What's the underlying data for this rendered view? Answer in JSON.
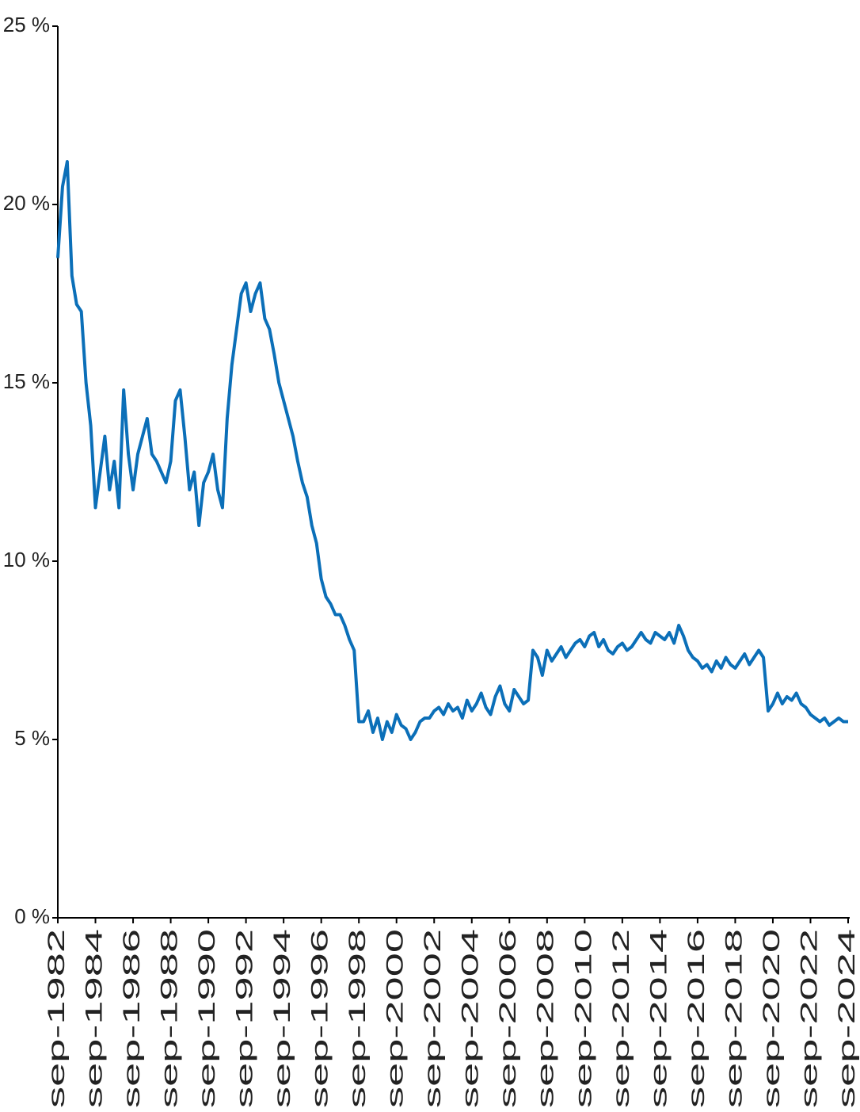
{
  "chart_data": {
    "type": "line",
    "categories": [
      "sep-1982",
      null,
      null,
      null,
      null,
      null,
      null,
      null,
      "sep-1984",
      null,
      null,
      null,
      null,
      null,
      null,
      null,
      "sep-1986",
      null,
      null,
      null,
      null,
      null,
      null,
      null,
      "sep-1988",
      null,
      null,
      null,
      null,
      null,
      null,
      null,
      "sep-1990",
      null,
      null,
      null,
      null,
      null,
      null,
      null,
      "sep-1992",
      null,
      null,
      null,
      null,
      null,
      null,
      null,
      "sep-1994",
      null,
      null,
      null,
      null,
      null,
      null,
      null,
      "sep-1996",
      null,
      null,
      null,
      null,
      null,
      null,
      null,
      "sep-1998",
      null,
      null,
      null,
      null,
      null,
      null,
      null,
      "sep-2000",
      null,
      null,
      null,
      null,
      null,
      null,
      null,
      "sep-2002",
      null,
      null,
      null,
      null,
      null,
      null,
      null,
      "sep-2004",
      null,
      null,
      null,
      null,
      null,
      null,
      null,
      "sep-2006",
      null,
      null,
      null,
      null,
      null,
      null,
      null,
      "sep-2008",
      null,
      null,
      null,
      null,
      null,
      null,
      null,
      "sep-2010",
      null,
      null,
      null,
      null,
      null,
      null,
      null,
      "sep-2012",
      null,
      null,
      null,
      null,
      null,
      null,
      null,
      "sep-2014",
      null,
      null,
      null,
      null,
      null,
      null,
      null,
      "sep-2016",
      null,
      null,
      null,
      null,
      null,
      null,
      null,
      "sep-2018",
      null,
      null,
      null,
      null,
      null,
      null,
      null,
      "sep-2020",
      null,
      null,
      null,
      null,
      null,
      null,
      null,
      "sep-2022",
      null,
      null,
      null,
      null,
      null,
      null,
      null,
      "sep-2024"
    ],
    "values": [
      18.5,
      20.5,
      21.2,
      18.0,
      17.2,
      17.0,
      15.0,
      13.8,
      11.5,
      12.5,
      13.5,
      12.0,
      12.8,
      11.5,
      14.8,
      13.0,
      12.0,
      13.0,
      13.5,
      14.0,
      13.0,
      12.8,
      12.5,
      12.2,
      12.8,
      14.5,
      14.8,
      13.5,
      12.0,
      12.5,
      11.0,
      12.2,
      12.5,
      13.0,
      12.0,
      11.5,
      14.0,
      15.5,
      16.5,
      17.5,
      17.8,
      17.0,
      17.5,
      17.8,
      16.8,
      16.5,
      15.8,
      15.0,
      14.5,
      14.0,
      13.5,
      12.8,
      12.2,
      11.8,
      11.0,
      10.5,
      9.5,
      9.0,
      8.8,
      8.5,
      8.5,
      8.2,
      7.8,
      7.5,
      5.5,
      5.5,
      5.8,
      5.2,
      5.6,
      5.0,
      5.5,
      5.2,
      5.7,
      5.4,
      5.3,
      5.0,
      5.2,
      5.5,
      5.6,
      5.6,
      5.8,
      5.9,
      5.7,
      6.0,
      5.8,
      5.9,
      5.6,
      6.1,
      5.8,
      6.0,
      6.3,
      5.9,
      5.7,
      6.2,
      6.5,
      6.0,
      5.8,
      6.4,
      6.2,
      6.0,
      6.1,
      7.5,
      7.3,
      6.8,
      7.5,
      7.2,
      7.4,
      7.6,
      7.3,
      7.5,
      7.7,
      7.8,
      7.6,
      7.9,
      8.0,
      7.6,
      7.8,
      7.5,
      7.4,
      7.6,
      7.7,
      7.5,
      7.6,
      7.8,
      8.0,
      7.8,
      7.7,
      8.0,
      7.9,
      7.8,
      8.0,
      7.7,
      8.2,
      7.9,
      7.5,
      7.3,
      7.2,
      7.0,
      7.1,
      6.9,
      7.2,
      7.0,
      7.3,
      7.1,
      7.0,
      7.2,
      7.4,
      7.1,
      7.3,
      7.5,
      7.3,
      5.8,
      6.0,
      6.3,
      6.0,
      6.2,
      6.1,
      6.3,
      6.0,
      5.9,
      5.7,
      5.6,
      5.5,
      5.6,
      5.4,
      5.5,
      5.6,
      5.5,
      5.5
    ],
    "color": "#0b6fb8",
    "ylim": [
      0,
      25
    ],
    "yticks": [
      {
        "value": 0,
        "label": "0 %"
      },
      {
        "value": 5,
        "label": "5 %"
      },
      {
        "value": 10,
        "label": "10 %"
      },
      {
        "value": 15,
        "label": "15 %"
      },
      {
        "value": 20,
        "label": "20 %"
      },
      {
        "value": 25,
        "label": "25 %"
      }
    ],
    "grid": false
  }
}
